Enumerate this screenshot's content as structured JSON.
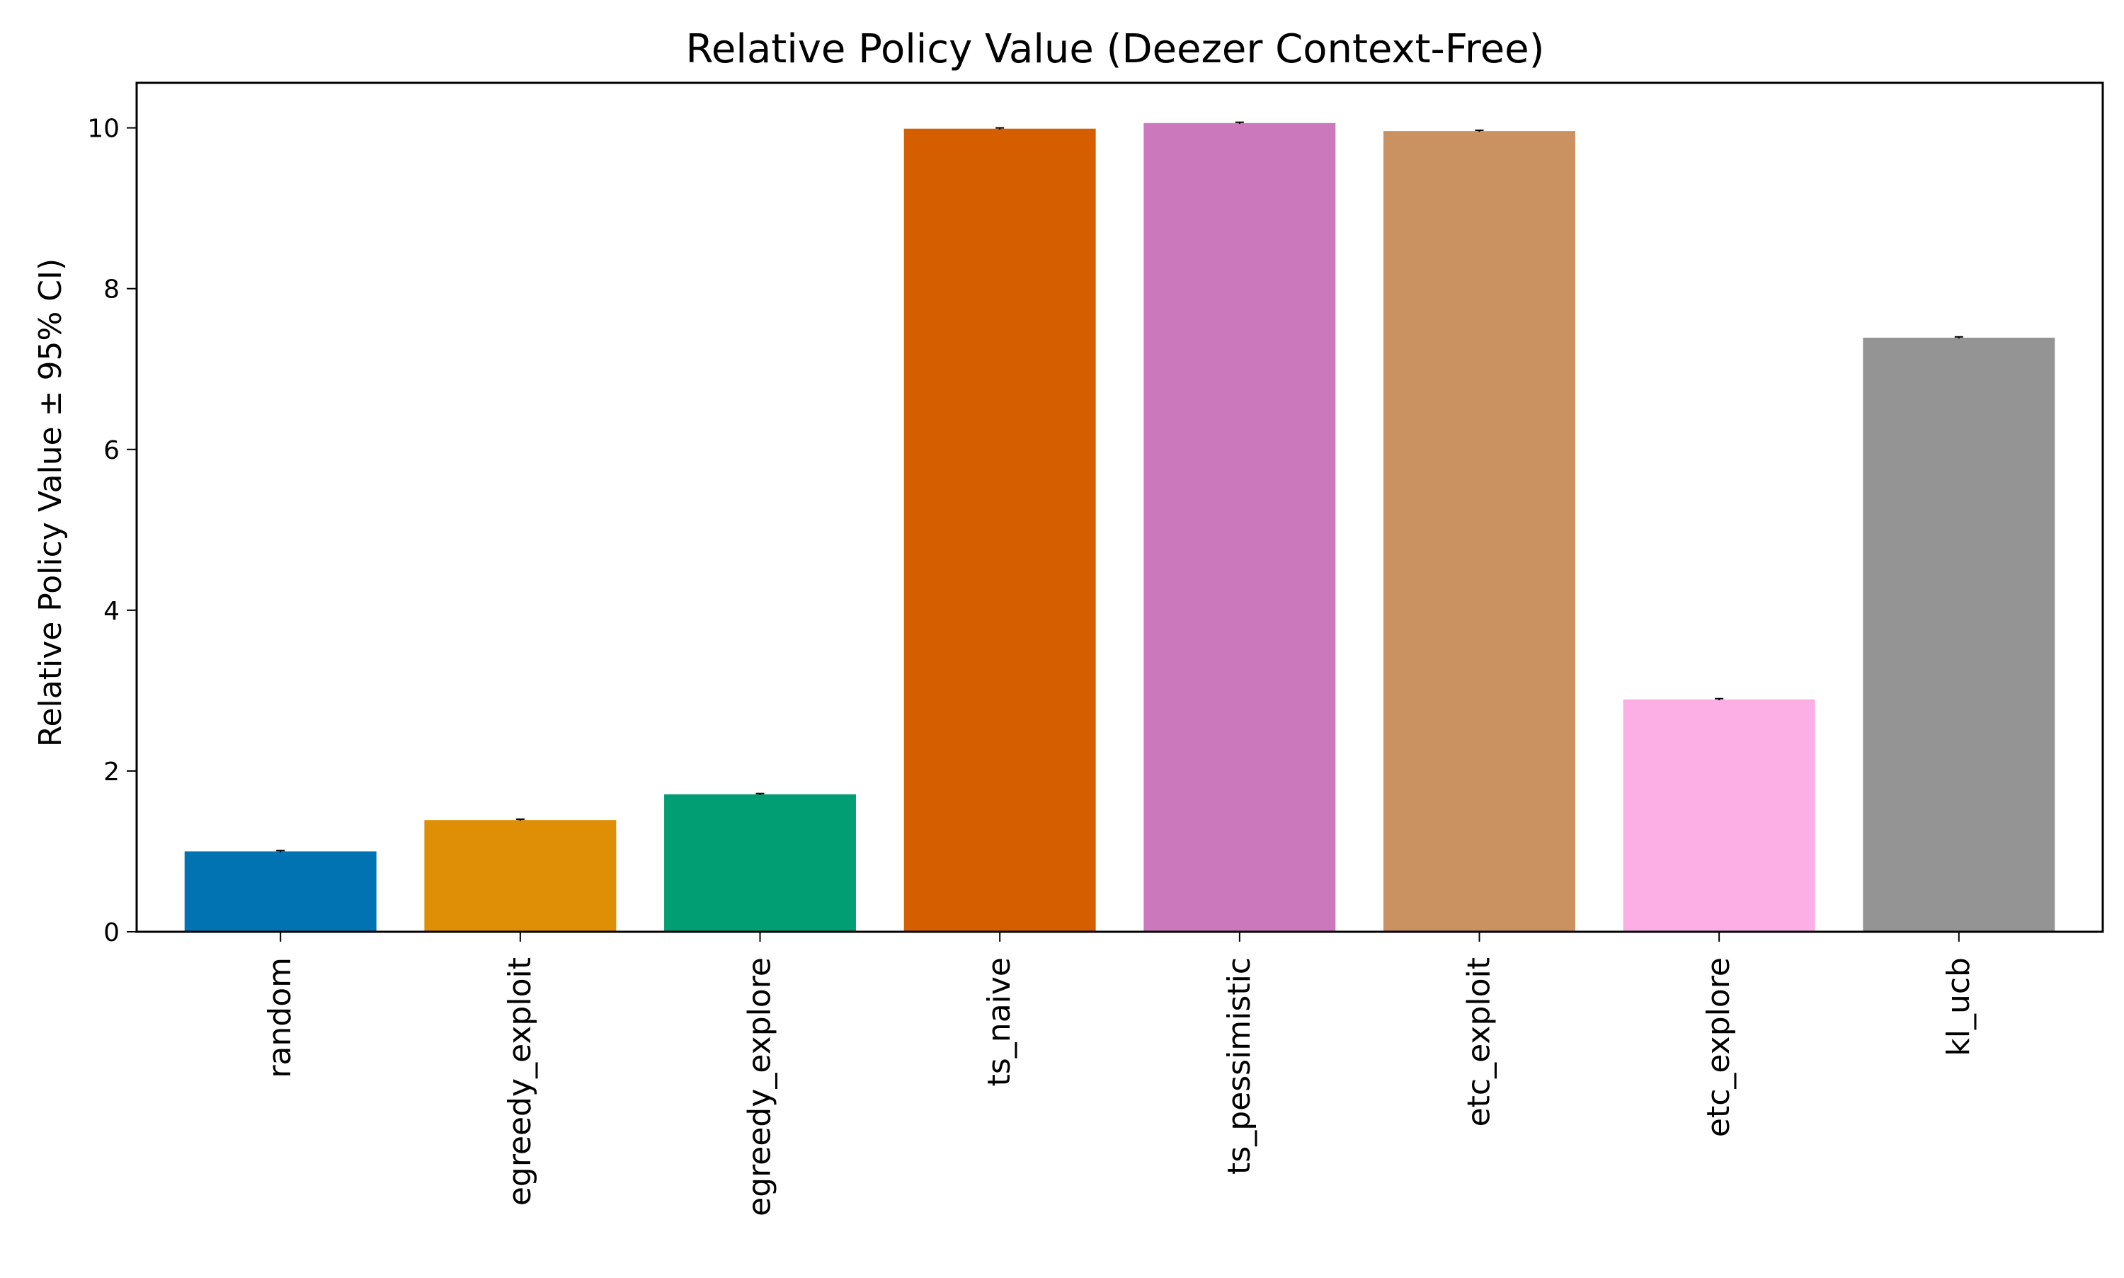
{
  "chart_data": {
    "type": "bar",
    "title": "Relative Policy Value (Deezer Context-Free)",
    "xlabel": "",
    "ylabel": "Relative Policy Value ± 95% CI)",
    "categories": [
      "random",
      "egreedy_exploit",
      "egreedy_explore",
      "ts_naive",
      "ts_pessimistic",
      "etc_exploit",
      "etc_explore",
      "kl_ucb"
    ],
    "values": [
      1.0,
      1.39,
      1.71,
      9.99,
      10.06,
      9.96,
      2.89,
      7.39
    ],
    "errors": [
      0.01,
      0.01,
      0.01,
      0.01,
      0.01,
      0.01,
      0.01,
      0.01
    ],
    "colors": [
      "#0173b2",
      "#de8f05",
      "#029e73",
      "#d55e00",
      "#cc78bc",
      "#ca9161",
      "#fbafe4",
      "#949494"
    ],
    "yticks": [
      0,
      2,
      4,
      6,
      8,
      10
    ],
    "ylim": [
      0,
      10.56
    ],
    "grid": false,
    "legend": "none"
  }
}
